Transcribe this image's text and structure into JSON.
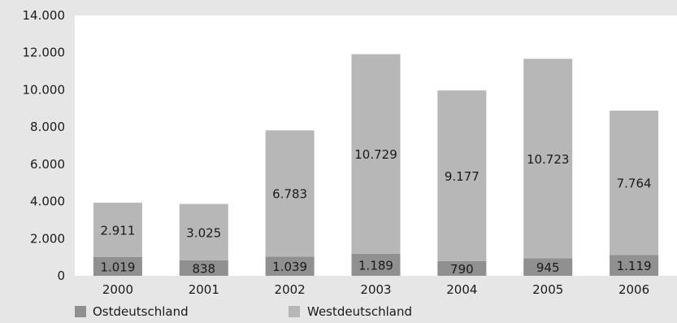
{
  "chart_data": {
    "type": "bar",
    "stacked": true,
    "categories": [
      "2000",
      "2001",
      "2002",
      "2003",
      "2004",
      "2005",
      "2006"
    ],
    "series": [
      {
        "name": "Ostdeutschland",
        "values": [
          1019,
          838,
          1039,
          1189,
          790,
          945,
          1119
        ],
        "labels": [
          "1.019",
          "838",
          "1.039",
          "1.189",
          "790",
          "945",
          "1.119"
        ],
        "color": "#909090"
      },
      {
        "name": "Westdeutschland",
        "values": [
          2911,
          3025,
          6783,
          10729,
          9177,
          10723,
          7764
        ],
        "labels": [
          "2.911",
          "3.025",
          "6.783",
          "10.729",
          "9.177",
          "10.723",
          "7.764"
        ],
        "color": "#b7b7b7"
      }
    ],
    "ylim": [
      0,
      14000
    ],
    "yticks": [
      0,
      2000,
      4000,
      6000,
      8000,
      10000,
      12000,
      14000
    ],
    "ytick_labels": [
      "0",
      "2.000",
      "4.000",
      "6.000",
      "8.000",
      "10.000",
      "12.000",
      "14.000"
    ],
    "grid": false,
    "legend": "bottom",
    "colors": {
      "background": "#e6e6e6",
      "plot_background": "#ffffff",
      "text": "#1a1a1a"
    }
  }
}
